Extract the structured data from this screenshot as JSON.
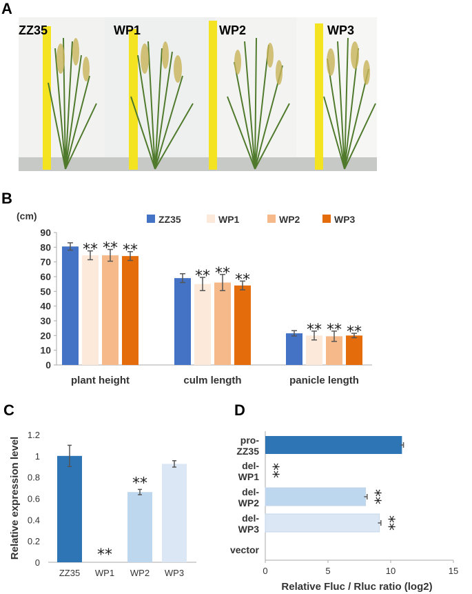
{
  "panels": {
    "a": "A",
    "b": "B",
    "c": "C",
    "d": "D"
  },
  "photo": {
    "labels": [
      "ZZ35",
      "WP1",
      "WP2",
      "WP3"
    ]
  },
  "colors": {
    "zz35": "#4472c4",
    "wp1": "#fde9d9",
    "wp2": "#f6b98a",
    "wp3": "#e46c0a",
    "c_zz35": "#2e75b6",
    "c_wp2": "#bdd7ee",
    "c_wp3": "#dbe7f5"
  },
  "chart_data": [
    {
      "id": "B",
      "type": "bar",
      "unit_label": "(cm)",
      "categories": [
        "plant height",
        "culm length",
        "panicle length"
      ],
      "series": [
        {
          "name": "ZZ35",
          "values": [
            80.5,
            59,
            21.5
          ],
          "errors": [
            2.5,
            3,
            1.8
          ]
        },
        {
          "name": "WP1",
          "values": [
            74.5,
            55,
            20
          ],
          "errors": [
            3,
            4.5,
            3
          ]
        },
        {
          "name": "WP2",
          "values": [
            74.5,
            56,
            19.5
          ],
          "errors": [
            4,
            5.5,
            3.5
          ]
        },
        {
          "name": "WP3",
          "values": [
            74,
            54,
            20
          ],
          "errors": [
            3,
            3,
            1.5
          ]
        }
      ],
      "significance": "**",
      "ylim": [
        0,
        90
      ],
      "yticks": [
        0,
        10,
        20,
        30,
        40,
        50,
        60,
        70,
        80,
        90
      ],
      "legend": "top"
    },
    {
      "id": "C",
      "type": "bar",
      "ylabel": "Relative expression level",
      "categories": [
        "ZZ35",
        "WP1",
        "WP2",
        "WP3"
      ],
      "values": [
        1.0,
        0,
        0.66,
        0.925
      ],
      "errors": [
        0.1,
        0,
        0.025,
        0.03
      ],
      "significance": [
        "",
        "**",
        "**",
        ""
      ],
      "ylim": [
        0,
        1.2
      ],
      "yticks": [
        "0",
        "0.2",
        "0.4",
        "0.6",
        "0.8",
        "1",
        "1.2"
      ]
    },
    {
      "id": "D",
      "type": "bar",
      "orientation": "horizontal",
      "xlabel": "Relative Fluc / Rluc ratio (log2)",
      "categories": [
        [
          "pro-",
          "ZZ35"
        ],
        [
          "del-",
          "WP1"
        ],
        [
          "del-",
          "WP2"
        ],
        [
          "del-",
          "WP3"
        ],
        [
          "vector"
        ]
      ],
      "values": [
        10.9,
        0,
        8.0,
        9.1,
        0
      ],
      "errors": [
        0.12,
        0,
        0.12,
        0.12,
        0
      ],
      "significance": [
        "",
        "**",
        "**",
        "**",
        ""
      ],
      "xlim": [
        0,
        15
      ],
      "xticks": [
        0,
        5,
        10,
        15
      ]
    }
  ]
}
